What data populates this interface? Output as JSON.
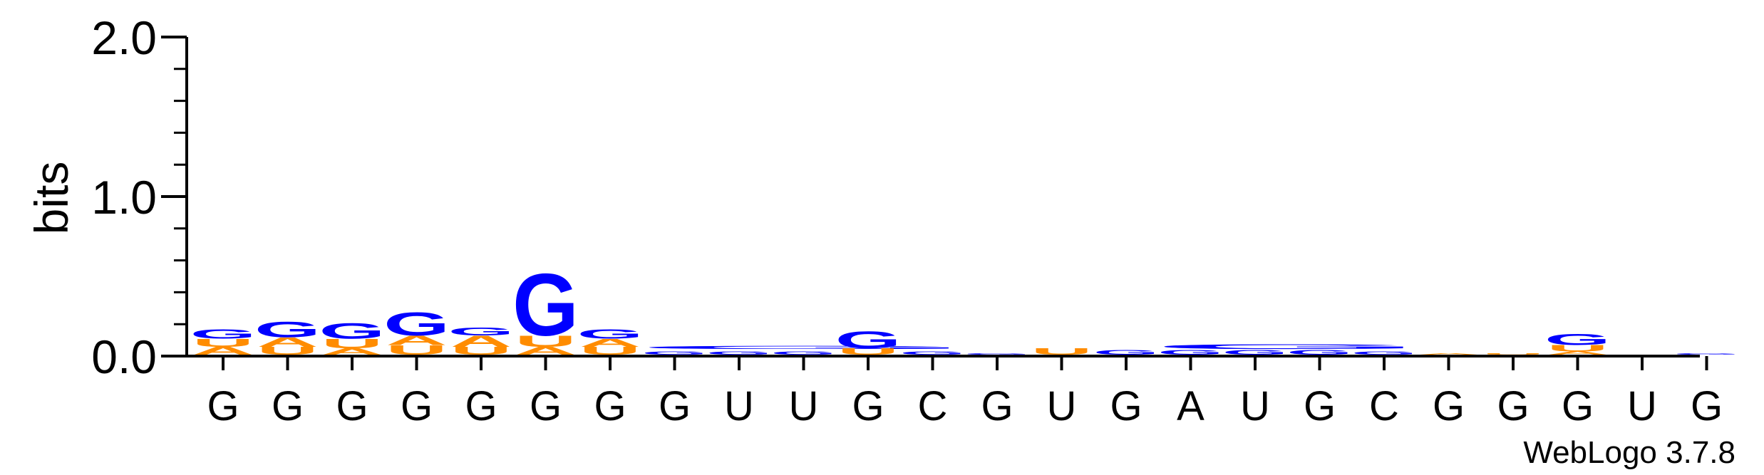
{
  "chart_data": {
    "type": "sequence-logo",
    "ylabel": "bits",
    "ylim": [
      0,
      2
    ],
    "y_ticks": [
      {
        "value": 0,
        "label": "0.0"
      },
      {
        "value": 1,
        "label": "1.0"
      },
      {
        "value": 2,
        "label": "2.0"
      }
    ],
    "y_minor_step": 0.2,
    "x_labels": [
      "G",
      "G",
      "G",
      "G",
      "G",
      "G",
      "G",
      "G",
      "U",
      "U",
      "G",
      "C",
      "G",
      "U",
      "G",
      "A",
      "U",
      "G",
      "C",
      "G",
      "G",
      "G",
      "U",
      "G"
    ],
    "footer": "WebLogo 3.7.8",
    "colors": {
      "G": "#0000ff",
      "A": "#ff8c00",
      "U": "#ff8c00",
      "C": "#0000ff"
    },
    "stacks": [
      [
        {
          "letter": "A",
          "bits": 0.05
        },
        {
          "letter": "U",
          "bits": 0.05
        },
        {
          "letter": "G",
          "bits": 0.06
        }
      ],
      [
        {
          "letter": "U",
          "bits": 0.05
        },
        {
          "letter": "A",
          "bits": 0.06
        },
        {
          "letter": "G",
          "bits": 0.1
        }
      ],
      [
        {
          "letter": "A",
          "bits": 0.04
        },
        {
          "letter": "U",
          "bits": 0.06
        },
        {
          "letter": "G",
          "bits": 0.1
        }
      ],
      [
        {
          "letter": "U",
          "bits": 0.06
        },
        {
          "letter": "A",
          "bits": 0.06
        },
        {
          "letter": "G",
          "bits": 0.15
        }
      ],
      [
        {
          "letter": "U",
          "bits": 0.05
        },
        {
          "letter": "A",
          "bits": 0.07
        },
        {
          "letter": "G",
          "bits": 0.05
        }
      ],
      [
        {
          "letter": "A",
          "bits": 0.05
        },
        {
          "letter": "U",
          "bits": 0.07
        },
        {
          "letter": "G",
          "bits": 0.4
        }
      ],
      [
        {
          "letter": "U",
          "bits": 0.05
        },
        {
          "letter": "A",
          "bits": 0.05
        },
        {
          "letter": "G",
          "bits": 0.06
        }
      ],
      [
        {
          "letter": "G",
          "bits": 0.02
        }
      ],
      [
        {
          "letter": "G",
          "bits": 0.02
        }
      ],
      [
        {
          "letter": "G",
          "bits": 0.02
        }
      ],
      [
        {
          "letter": "U",
          "bits": 0.04
        },
        {
          "letter": "G",
          "bits": 0.11
        }
      ],
      [
        {
          "letter": "G",
          "bits": 0.02
        }
      ],
      [
        {
          "letter": "G",
          "bits": 0.01
        }
      ],
      [
        {
          "letter": "U",
          "bits": 0.04
        }
      ],
      [
        {
          "letter": "G",
          "bits": 0.03
        }
      ],
      [
        {
          "letter": "G",
          "bits": 0.03
        }
      ],
      [
        {
          "letter": "G",
          "bits": 0.03
        }
      ],
      [
        {
          "letter": "G",
          "bits": 0.03
        }
      ],
      [
        {
          "letter": "G",
          "bits": 0.02
        }
      ],
      [
        {
          "letter": "A",
          "bits": 0.01
        }
      ],
      [
        {
          "letter": "U",
          "bits": 0.01
        }
      ],
      [
        {
          "letter": "A",
          "bits": 0.02
        },
        {
          "letter": "U",
          "bits": 0.04
        },
        {
          "letter": "G",
          "bits": 0.07
        }
      ],
      [],
      [
        {
          "letter": "G",
          "bits": 0.01
        }
      ]
    ],
    "spans": [
      {
        "from": 7,
        "to": 11,
        "letter": "G",
        "bits": 0.02
      },
      {
        "from": 15,
        "to": 18,
        "letter": "G",
        "bits": 0.03
      }
    ]
  }
}
